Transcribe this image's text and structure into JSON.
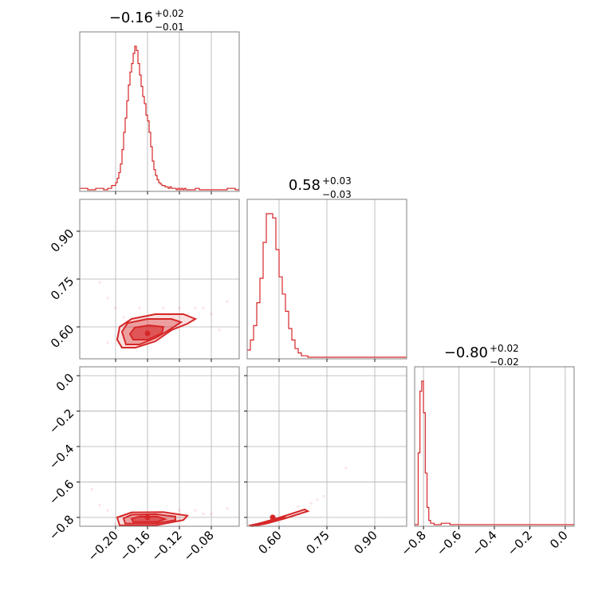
{
  "chart_data": {
    "type": "corner",
    "color": "#d62728",
    "params": [
      {
        "title_main": "−0.16",
        "title_sup": "+0.02",
        "title_sub": "−0.01",
        "range": [
          -0.245,
          -0.045
        ],
        "ticks": [
          -0.2,
          -0.16,
          -0.12,
          -0.08
        ],
        "tick_labels": [
          "−0.20",
          "−0.16",
          "−0.12",
          "−0.08"
        ],
        "median": -0.16
      },
      {
        "title_main": "0.58",
        "title_sup": "+0.03",
        "title_sub": "−0.03",
        "range": [
          0.5,
          1.0
        ],
        "ticks": [
          0.6,
          0.75,
          0.9
        ],
        "tick_labels": [
          "0.60",
          "0.75",
          "0.90"
        ],
        "median": 0.58
      },
      {
        "title_main": "−0.80",
        "title_sup": "+0.02",
        "title_sub": "−0.02",
        "range": [
          -0.85,
          0.05
        ],
        "ticks": [
          -0.8,
          -0.6,
          -0.4,
          -0.2,
          0.0
        ],
        "tick_labels": [
          "−0.8",
          "−0.6",
          "−0.4",
          "−0.2",
          "0.0"
        ],
        "median": -0.8
      }
    ],
    "histograms": [
      {
        "param": 0,
        "x": [
          -0.245,
          -0.235,
          -0.225,
          -0.215,
          -0.21,
          -0.205,
          -0.2,
          -0.198,
          -0.196,
          -0.194,
          -0.192,
          -0.19,
          -0.188,
          -0.186,
          -0.184,
          -0.182,
          -0.18,
          -0.178,
          -0.176,
          -0.174,
          -0.172,
          -0.17,
          -0.168,
          -0.166,
          -0.164,
          -0.162,
          -0.16,
          -0.158,
          -0.156,
          -0.154,
          -0.152,
          -0.15,
          -0.148,
          -0.146,
          -0.144,
          -0.142,
          -0.14,
          -0.138,
          -0.136,
          -0.134,
          -0.132,
          -0.13,
          -0.128,
          -0.126,
          -0.124,
          -0.122,
          -0.12,
          -0.118,
          -0.116,
          -0.114,
          -0.112,
          -0.11,
          -0.105,
          -0.1,
          -0.095,
          -0.09,
          -0.085,
          -0.08,
          -0.07,
          -0.06,
          -0.05
        ],
        "y": [
          0.01,
          0.0,
          0.01,
          0.0,
          0.01,
          0.03,
          0.05,
          0.08,
          0.12,
          0.18,
          0.28,
          0.4,
          0.5,
          0.62,
          0.73,
          0.82,
          0.88,
          0.95,
          1.0,
          0.97,
          0.88,
          0.8,
          0.72,
          0.65,
          0.6,
          0.52,
          0.48,
          0.4,
          0.3,
          0.2,
          0.14,
          0.1,
          0.07,
          0.05,
          0.04,
          0.03,
          0.03,
          0.02,
          0.02,
          0.01,
          0.02,
          0.01,
          0.01,
          0.01,
          0.0,
          0.01,
          0.0,
          0.01,
          0.0,
          0.01,
          0.0,
          0.0,
          0.0,
          0.01,
          0.0,
          0.0,
          0.0,
          0.0,
          0.0,
          0.01,
          0.0
        ]
      },
      {
        "param": 1,
        "x": [
          0.5,
          0.51,
          0.52,
          0.53,
          0.54,
          0.55,
          0.56,
          0.57,
          0.58,
          0.59,
          0.6,
          0.61,
          0.62,
          0.63,
          0.64,
          0.65,
          0.66,
          0.67,
          0.68,
          0.69,
          0.7,
          0.72,
          0.75,
          0.8,
          0.9,
          1.0
        ],
        "y": [
          0.05,
          0.12,
          0.22,
          0.38,
          0.55,
          0.8,
          1.0,
          1.0,
          0.97,
          0.75,
          0.56,
          0.44,
          0.32,
          0.2,
          0.12,
          0.06,
          0.03,
          0.01,
          0.01,
          0.0,
          0.0,
          0.0,
          0.0,
          0.0,
          0.0,
          0.0
        ]
      },
      {
        "param": 2,
        "x": [
          -0.85,
          -0.84,
          -0.83,
          -0.82,
          -0.81,
          -0.8,
          -0.79,
          -0.78,
          -0.77,
          -0.76,
          -0.75,
          -0.74,
          -0.72,
          -0.7,
          -0.65,
          -0.6,
          -0.5,
          -0.4,
          -0.2,
          0.0,
          0.05
        ],
        "y": [
          0.0,
          0.0,
          0.5,
          0.93,
          1.0,
          0.78,
          0.36,
          0.12,
          0.03,
          0.01,
          0.01,
          0.0,
          0.0,
          0.01,
          0.0,
          0.0,
          0.0,
          0.0,
          0.0,
          0.0,
          0.0
        ]
      }
    ],
    "pairs": [
      {
        "x_param": 0,
        "y_param": 1,
        "center": [
          -0.16,
          0.58
        ],
        "levels": [
          [
            [
              -0.192,
              0.535
            ],
            [
              -0.175,
              0.535
            ],
            [
              -0.15,
              0.555
            ],
            [
              -0.13,
              0.59
            ],
            [
              -0.11,
              0.61
            ],
            [
              -0.1,
              0.625
            ],
            [
              -0.115,
              0.64
            ],
            [
              -0.15,
              0.64
            ],
            [
              -0.18,
              0.625
            ],
            [
              -0.195,
              0.6
            ],
            [
              -0.198,
              0.56
            ]
          ],
          [
            [
              -0.187,
              0.545
            ],
            [
              -0.17,
              0.545
            ],
            [
              -0.15,
              0.565
            ],
            [
              -0.13,
              0.595
            ],
            [
              -0.118,
              0.615
            ],
            [
              -0.13,
              0.625
            ],
            [
              -0.16,
              0.625
            ],
            [
              -0.185,
              0.612
            ],
            [
              -0.192,
              0.585
            ]
          ],
          [
            [
              -0.178,
              0.56
            ],
            [
              -0.16,
              0.56
            ],
            [
              -0.142,
              0.58
            ],
            [
              -0.14,
              0.6
            ],
            [
              -0.158,
              0.605
            ],
            [
              -0.176,
              0.598
            ],
            [
              -0.182,
              0.578
            ]
          ]
        ],
        "points": [
          [
            -0.22,
            0.74
          ],
          [
            -0.21,
            0.69
          ],
          [
            -0.09,
            0.66
          ],
          [
            -0.08,
            0.64
          ],
          [
            -0.06,
            0.68
          ],
          [
            -0.1,
            0.66
          ],
          [
            -0.12,
            0.66
          ],
          [
            -0.21,
            0.55
          ],
          [
            -0.2,
            0.66
          ],
          [
            -0.17,
            0.66
          ],
          [
            -0.07,
            0.59
          ],
          [
            -0.11,
            0.64
          ],
          [
            -0.19,
            0.63
          ],
          [
            -0.14,
            0.66
          ]
        ]
      },
      {
        "x_param": 0,
        "y_param": 2,
        "center": [
          -0.16,
          -0.8
        ],
        "levels": [
          [
            [
              -0.195,
              -0.845
            ],
            [
              -0.15,
              -0.845
            ],
            [
              -0.115,
              -0.815
            ],
            [
              -0.11,
              -0.79
            ],
            [
              -0.14,
              -0.77
            ],
            [
              -0.18,
              -0.772
            ],
            [
              -0.198,
              -0.8
            ]
          ],
          [
            [
              -0.188,
              -0.835
            ],
            [
              -0.15,
              -0.835
            ],
            [
              -0.125,
              -0.815
            ],
            [
              -0.125,
              -0.795
            ],
            [
              -0.15,
              -0.782
            ],
            [
              -0.18,
              -0.785
            ],
            [
              -0.19,
              -0.805
            ]
          ],
          [
            [
              -0.178,
              -0.825
            ],
            [
              -0.148,
              -0.825
            ],
            [
              -0.138,
              -0.81
            ],
            [
              -0.148,
              -0.795
            ],
            [
              -0.17,
              -0.795
            ],
            [
              -0.18,
              -0.808
            ]
          ]
        ],
        "points": [
          [
            -0.21,
            -0.76
          ],
          [
            -0.22,
            -0.73
          ],
          [
            -0.09,
            -0.78
          ],
          [
            -0.1,
            -0.76
          ],
          [
            -0.06,
            -0.75
          ],
          [
            -0.23,
            -0.64
          ],
          [
            -0.12,
            -0.76
          ],
          [
            -0.08,
            -0.78
          ],
          [
            -0.2,
            -0.84
          ]
        ]
      },
      {
        "x_param": 1,
        "y_param": 2,
        "center": [
          0.58,
          -0.8
        ],
        "levels": [
          [
            [
              0.51,
              -0.845
            ],
            [
              0.56,
              -0.825
            ],
            [
              0.62,
              -0.79
            ],
            [
              0.68,
              -0.755
            ],
            [
              0.69,
              -0.765
            ],
            [
              0.62,
              -0.805
            ],
            [
              0.56,
              -0.835
            ],
            [
              0.515,
              -0.85
            ]
          ],
          [
            [
              0.53,
              -0.838
            ],
            [
              0.57,
              -0.818
            ],
            [
              0.62,
              -0.792
            ],
            [
              0.615,
              -0.8
            ],
            [
              0.57,
              -0.825
            ],
            [
              0.532,
              -0.842
            ]
          ],
          [
            [
              0.56,
              -0.823
            ],
            [
              0.59,
              -0.808
            ],
            [
              0.588,
              -0.815
            ],
            [
              0.562,
              -0.827
            ]
          ]
        ],
        "points": [
          [
            0.7,
            -0.72
          ],
          [
            0.72,
            -0.7
          ],
          [
            0.81,
            -0.52
          ],
          [
            0.74,
            -0.68
          ],
          [
            0.66,
            -0.74
          ]
        ]
      }
    ]
  }
}
